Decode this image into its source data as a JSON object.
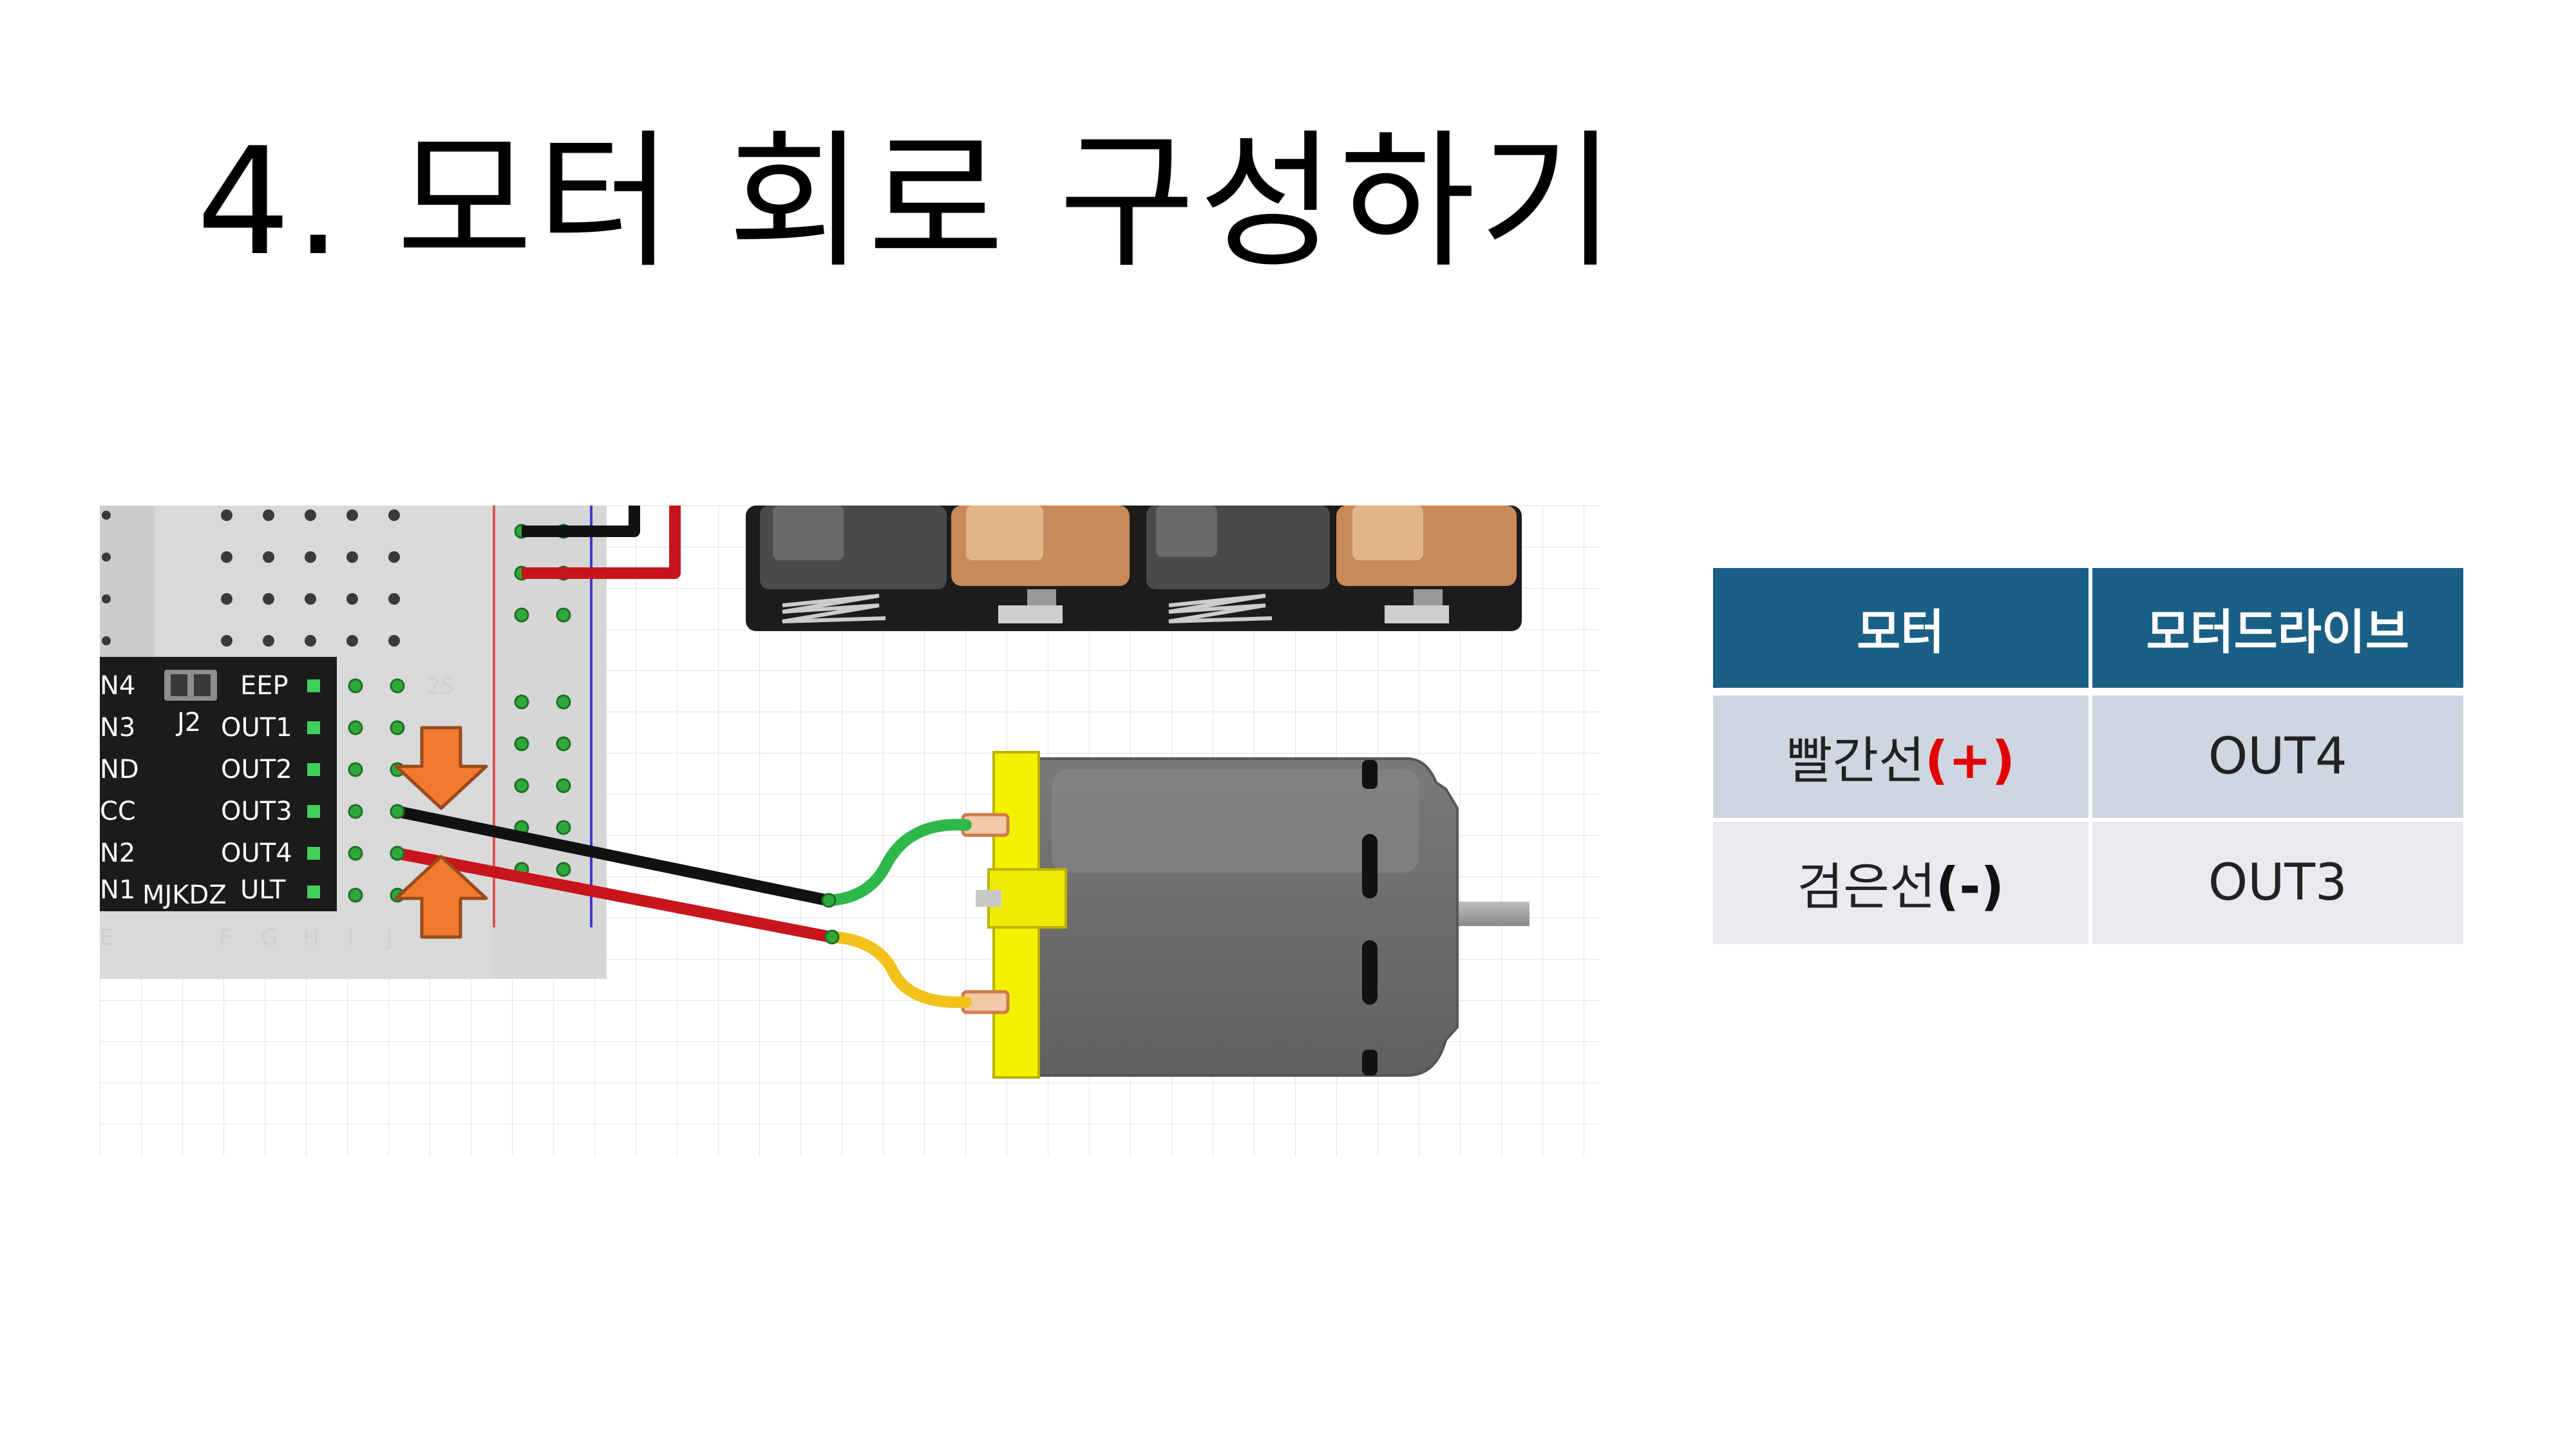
{
  "slide": {
    "title": "4. 모터 회로 구성하기"
  },
  "diagram": {
    "driver_pins_left": [
      "N4",
      "N3",
      "ND",
      "CC",
      "N2",
      "N1"
    ],
    "driver_pins_right": [
      "EEP",
      "OUT1",
      "OUT2",
      "OUT3",
      "OUT4",
      "ULT"
    ],
    "jumper_label": "J2",
    "module_label": "MJKDZ",
    "row_number": "25",
    "column_letters": [
      "E",
      "F",
      "G",
      "H",
      "I",
      "J"
    ],
    "colors": {
      "black_wire": "#111111",
      "red_wire": "#c8141c",
      "green_lead": "#2eb84a",
      "yellow_lead": "#f2c21a",
      "arrow": "#f07a30",
      "motor_body": "#6e6e6e",
      "motor_cap": "#f5f000"
    }
  },
  "table": {
    "headers": [
      "모터",
      "모터드라이브"
    ],
    "rows": [
      {
        "wire": "빨간선",
        "open": "(",
        "sign": "+",
        "close": ")",
        "pin": "OUT4"
      },
      {
        "wire": "검은선",
        "open": "(",
        "sign": "-",
        "close": ")",
        "pin": "OUT3"
      }
    ]
  }
}
